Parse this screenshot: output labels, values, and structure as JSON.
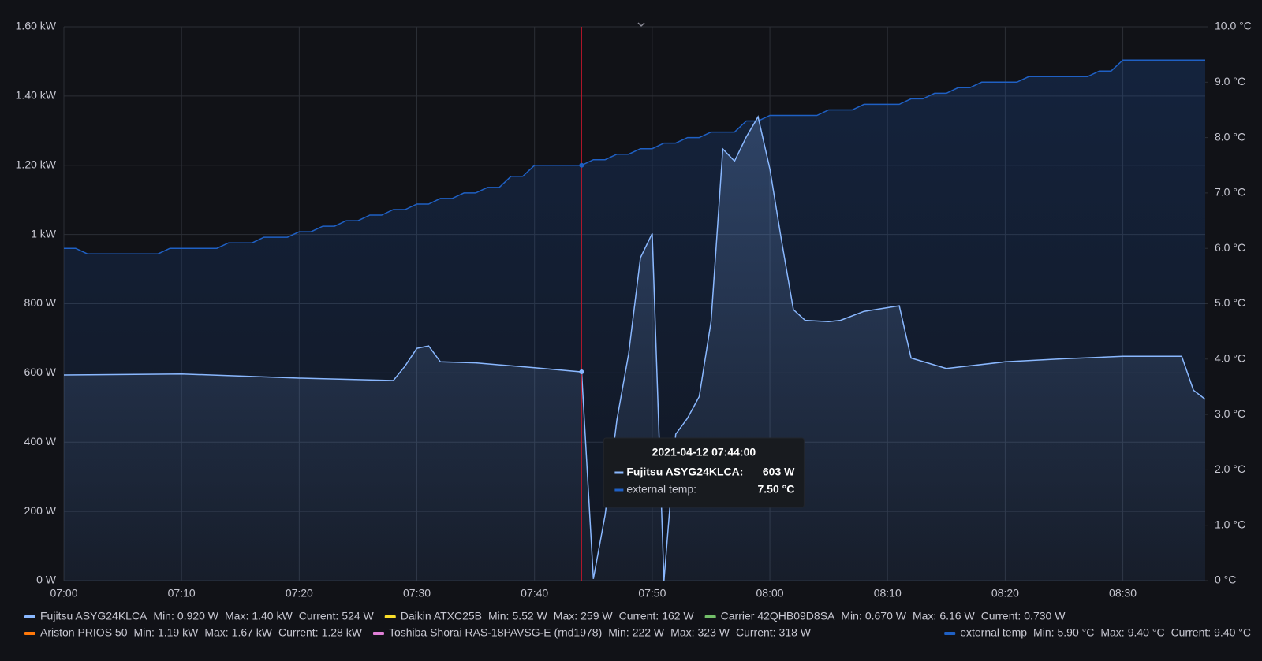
{
  "chart_data": {
    "type": "line",
    "ylim": [
      0,
      1600
    ],
    "yticks": [
      {
        "value": 0,
        "label": "0 W"
      },
      {
        "value": 200,
        "label": "200 W"
      },
      {
        "value": 400,
        "label": "400 W"
      },
      {
        "value": 600,
        "label": "600 W"
      },
      {
        "value": 800,
        "label": "800 W"
      },
      {
        "value": 1000,
        "label": "1 kW"
      },
      {
        "value": 1200,
        "label": "1.20 kW"
      },
      {
        "value": 1400,
        "label": "1.40 kW"
      },
      {
        "value": 1600,
        "label": "1.60 kW"
      }
    ],
    "y2lim": [
      0,
      10
    ],
    "y2ticks": [
      {
        "value": 0,
        "label": "0 °C"
      },
      {
        "value": 1,
        "label": "1.0 °C"
      },
      {
        "value": 2,
        "label": "2.0 °C"
      },
      {
        "value": 3,
        "label": "3.0 °C"
      },
      {
        "value": 4,
        "label": "4.0 °C"
      },
      {
        "value": 5,
        "label": "5.0 °C"
      },
      {
        "value": 6,
        "label": "6.0 °C"
      },
      {
        "value": 7,
        "label": "7.0 °C"
      },
      {
        "value": 8,
        "label": "8.0 °C"
      },
      {
        "value": 9,
        "label": "9.0 °C"
      },
      {
        "value": 10,
        "label": "10.0 °C"
      }
    ],
    "xlim": [
      "07:00",
      "08:37"
    ],
    "xticks": [
      "07:00",
      "07:10",
      "07:20",
      "07:30",
      "07:40",
      "07:50",
      "08:00",
      "08:10",
      "08:20",
      "08:30"
    ],
    "grid": true,
    "legend_labels": {
      "min": "Min:",
      "max": "Max:",
      "current": "Current:"
    },
    "series": [
      {
        "name": "Fujitsu ASYG24KLCA",
        "color": "#8ab8ff",
        "min": "0.920 W",
        "max": "1.40 kW",
        "current": "524 W",
        "x": [
          "07:00",
          "07:10",
          "07:20",
          "07:28",
          "07:29",
          "07:30",
          "07:31",
          "07:32",
          "07:35",
          "07:40",
          "07:44",
          "07:45",
          "07:46",
          "07:47",
          "07:48",
          "07:49",
          "07:50",
          "07:51",
          "07:52",
          "07:53",
          "07:54",
          "07:55",
          "07:56",
          "07:57",
          "07:58",
          "07:59",
          "08:00",
          "08:01",
          "08:02",
          "08:03",
          "08:05",
          "08:06",
          "08:08",
          "08:11",
          "08:12",
          "08:15",
          "08:20",
          "08:25",
          "08:30",
          "08:35",
          "08:36",
          "08:37"
        ],
        "values": [
          594,
          597,
          585,
          578,
          620,
          671,
          678,
          632,
          629,
          615,
          603,
          5,
          190,
          464,
          655,
          933,
          1003,
          0,
          423,
          469,
          532,
          748,
          1247,
          1212,
          1282,
          1340,
          1189,
          980,
          783,
          752,
          748,
          752,
          778,
          794,
          643,
          613,
          632,
          641,
          648,
          648,
          550,
          524
        ]
      },
      {
        "name": "Daikin ATXC25B",
        "color": "#fade2a",
        "min": "5.52 W",
        "max": "259 W",
        "current": "162 W"
      },
      {
        "name": "Carrier 42QHB09D8SA",
        "color": "#73bf69",
        "min": "0.670 W",
        "max": "6.16 W",
        "current": "0.730 W"
      },
      {
        "name": "Ariston PRIOS 50",
        "color": "#ff780a",
        "min": "1.19 kW",
        "max": "1.67 kW",
        "current": "1.28 kW"
      },
      {
        "name": "Toshiba Shorai RAS-18PAVSG-E (rnd1978)",
        "color": "#e07fd6",
        "min": "222 W",
        "max": "323 W",
        "current": "318 W"
      },
      {
        "name": "external temp",
        "color": "#1f60c4",
        "axis": "y2",
        "min": "5.90 °C",
        "max": "9.40 °C",
        "current": "9.40 °C",
        "x": [
          "07:00",
          "07:01",
          "07:02",
          "07:08",
          "07:09",
          "07:13",
          "07:14",
          "07:16",
          "07:17",
          "07:19",
          "07:20",
          "07:21",
          "07:22",
          "07:23",
          "07:24",
          "07:25",
          "07:26",
          "07:27",
          "07:28",
          "07:29",
          "07:30",
          "07:31",
          "07:32",
          "07:33",
          "07:34",
          "07:35",
          "07:36",
          "07:37",
          "07:38",
          "07:39",
          "07:40",
          "07:44",
          "07:45",
          "07:46",
          "07:47",
          "07:48",
          "07:49",
          "07:50",
          "07:51",
          "07:52",
          "07:53",
          "07:54",
          "07:55",
          "07:57",
          "07:58",
          "07:59",
          "08:00",
          "08:04",
          "08:05",
          "08:07",
          "08:08",
          "08:11",
          "08:12",
          "08:13",
          "08:14",
          "08:15",
          "08:16",
          "08:17",
          "08:18",
          "08:21",
          "08:22",
          "08:27",
          "08:28",
          "08:29",
          "08:30",
          "08:37"
        ],
        "values": [
          6.0,
          6.0,
          5.9,
          5.9,
          6.0,
          6.0,
          6.1,
          6.1,
          6.2,
          6.2,
          6.3,
          6.3,
          6.4,
          6.4,
          6.5,
          6.5,
          6.6,
          6.6,
          6.7,
          6.7,
          6.8,
          6.8,
          6.9,
          6.9,
          7.0,
          7.0,
          7.1,
          7.1,
          7.3,
          7.3,
          7.5,
          7.5,
          7.6,
          7.6,
          7.7,
          7.7,
          7.8,
          7.8,
          7.9,
          7.9,
          8.0,
          8.0,
          8.1,
          8.1,
          8.3,
          8.3,
          8.4,
          8.4,
          8.5,
          8.5,
          8.6,
          8.6,
          8.7,
          8.7,
          8.8,
          8.8,
          8.9,
          8.9,
          9.0,
          9.0,
          9.1,
          9.1,
          9.2,
          9.2,
          9.4,
          9.4
        ]
      }
    ],
    "cursor": "07:44",
    "tooltip": {
      "title": "2021-04-12 07:44:00",
      "rows": [
        {
          "label": "Fujitsu ASYG24KLCA:",
          "value": "603 W"
        },
        {
          "label": "external temp:",
          "value": "7.50 °C"
        }
      ]
    }
  }
}
